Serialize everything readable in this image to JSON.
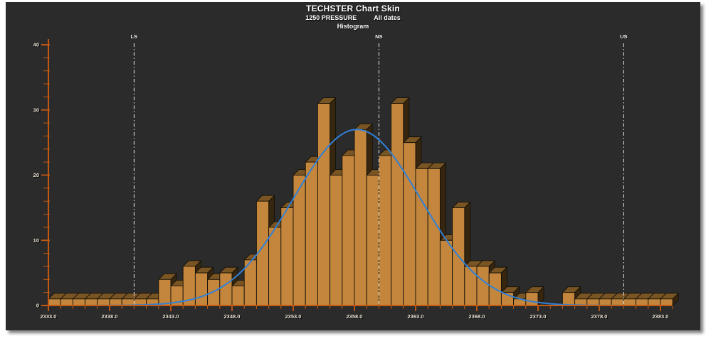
{
  "header": {
    "title": "TECHSTER Chart Skin",
    "subtitle_left": "1250 PRESSURE",
    "subtitle_right": "All dates",
    "chart_type_label": "Histogram"
  },
  "chart_data": {
    "type": "bar",
    "variant": "3d-histogram",
    "title": "TECHSTER Chart Skin",
    "subtitle": "1250 PRESSURE  All dates",
    "chart_label": "Histogram",
    "bins": {
      "start": 2333,
      "width": 1
    },
    "values": [
      1,
      1,
      1,
      1,
      1,
      1,
      1,
      1,
      1,
      4,
      3,
      6,
      5,
      4,
      5,
      3,
      7,
      16,
      12,
      15,
      20,
      22,
      31,
      20,
      23,
      27,
      20,
      23,
      31,
      25,
      21,
      21,
      10,
      15,
      6,
      6,
      5,
      2,
      1,
      2,
      0,
      0,
      2,
      1,
      1,
      1,
      1,
      1,
      1,
      1,
      1
    ],
    "xlim": [
      2333,
      2384
    ],
    "ylim": [
      0,
      40
    ],
    "x_major_step": 5,
    "x_minor_step": 1,
    "y_major_step": 10,
    "y_minor_step": 2,
    "x_major_tick_labels": [
      "2333.0",
      "2338.0",
      "2343.0",
      "2348.0",
      "2353.0",
      "2358.0",
      "2363.0",
      "2368.0",
      "2373.0",
      "2378.0",
      "2383.0"
    ],
    "y_major_tick_labels": [
      "0",
      "10",
      "20",
      "30",
      "40"
    ],
    "reference_lines": [
      {
        "label": "LS",
        "x": 2340
      },
      {
        "label": "NS",
        "x": 2360
      },
      {
        "label": "US",
        "x": 2380
      }
    ],
    "fit_curve": {
      "shape": "normal",
      "mean": 2358.2,
      "sigma": 5.2,
      "peak": 27,
      "draw_from": 2335.8,
      "draw_to": 2381
    },
    "legend": "none",
    "grid": "off",
    "colors": {
      "background": "#2b2b2b",
      "axis": "#c45a12",
      "bar_front": "#c4863c",
      "bar_top": "#7a5524",
      "bar_side": "#362610",
      "bar_outline": "#131008",
      "curve": "#2f80d9",
      "reference_line": "#ededed",
      "tick_label": "#ece4d4",
      "title_text": "#ffffff"
    }
  }
}
